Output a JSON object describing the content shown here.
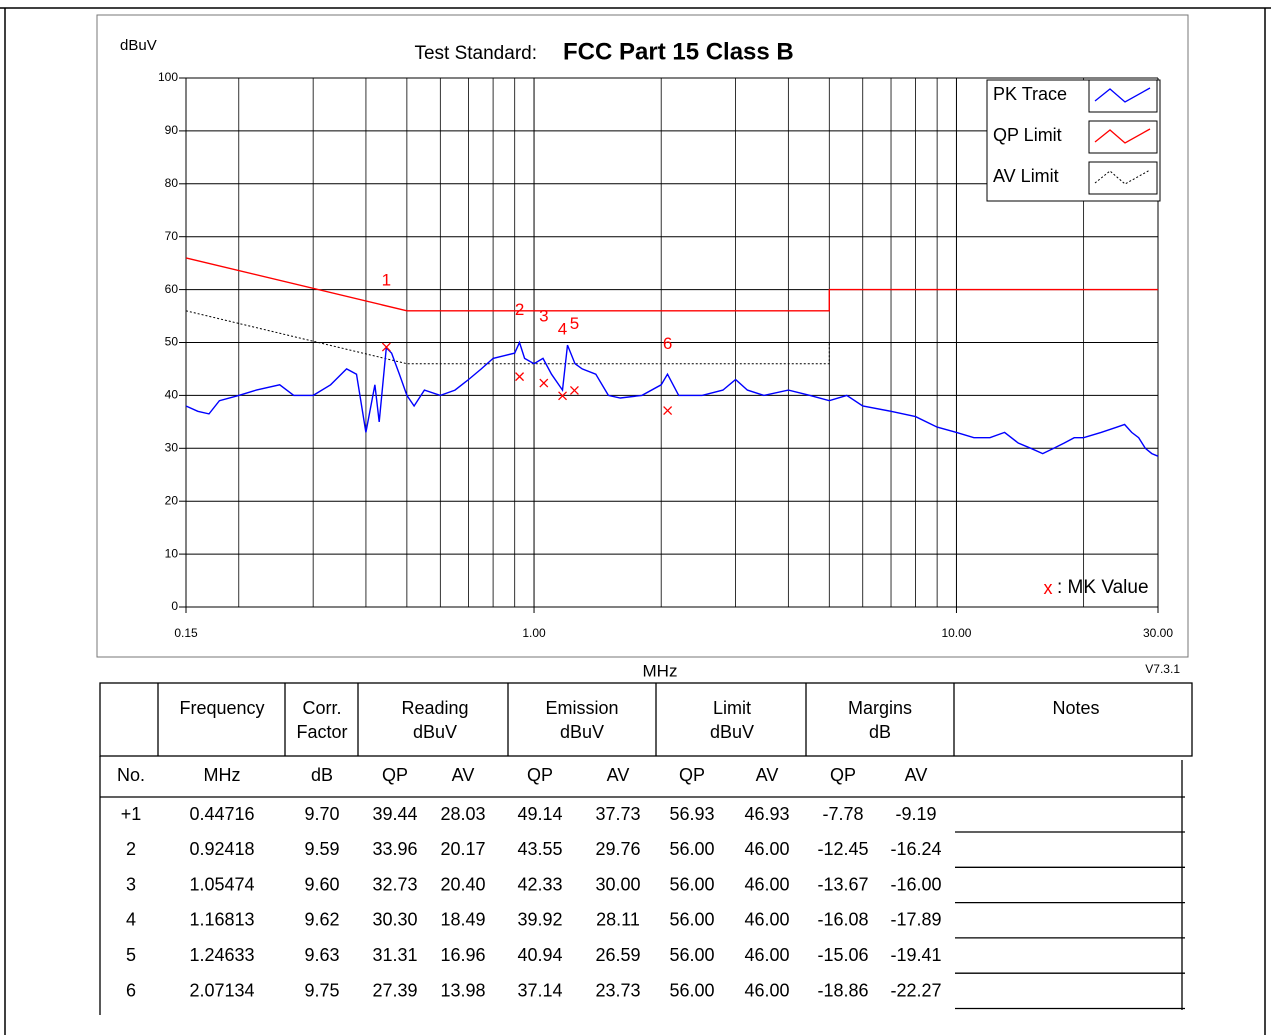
{
  "chart_data": {
    "type": "line",
    "ylabel": "dBuV",
    "title_prefix": "Test Standard:",
    "title": "FCC Part 15 Class B",
    "xlabel": "MHz",
    "version": "V7.3.1",
    "x_log": true,
    "grid": true,
    "legend": "upper right",
    "xlim": [
      0.15,
      30
    ],
    "ylim": [
      0,
      100
    ],
    "xticks": [
      0.15,
      {
        "value": 1,
        "label": "1.00"
      },
      {
        "value": 10,
        "label": "10.00"
      },
      {
        "value": 30,
        "label": "30.00"
      }
    ],
    "x_minor_grid": [
      0.2,
      0.3,
      0.4,
      0.5,
      0.6,
      0.7,
      0.8,
      0.9,
      2,
      3,
      4,
      5,
      6,
      7,
      8,
      9,
      20
    ],
    "yticks": [
      0,
      10,
      20,
      30,
      40,
      50,
      60,
      70,
      80,
      90,
      100
    ],
    "series": [
      {
        "name": "PK Trace",
        "color": "#0000ff",
        "x": [
          0.15,
          0.16,
          0.17,
          0.18,
          0.2,
          0.22,
          0.25,
          0.27,
          0.3,
          0.33,
          0.36,
          0.38,
          0.4,
          0.42,
          0.43,
          0.447,
          0.46,
          0.48,
          0.5,
          0.52,
          0.55,
          0.6,
          0.65,
          0.7,
          0.75,
          0.8,
          0.85,
          0.9,
          0.924,
          0.95,
          1.0,
          1.05,
          1.1,
          1.168,
          1.2,
          1.25,
          1.3,
          1.4,
          1.5,
          1.6,
          1.8,
          2.0,
          2.07,
          2.2,
          2.5,
          2.8,
          3.0,
          3.2,
          3.5,
          4.0,
          4.5,
          5.0,
          5.5,
          6.0,
          7,
          8,
          9,
          10,
          11,
          12,
          13,
          14,
          15,
          16,
          17,
          18,
          19,
          20,
          22,
          24,
          25,
          26,
          27,
          28,
          29,
          30
        ],
        "values": [
          38,
          37,
          36.5,
          39,
          40,
          41,
          42,
          40,
          40,
          42,
          45,
          44,
          33,
          42,
          35,
          49,
          48,
          44,
          40,
          38,
          41,
          40,
          41,
          43,
          45,
          47,
          47.5,
          48,
          50,
          47,
          46,
          47,
          44,
          41,
          49.5,
          46,
          45,
          44,
          40,
          39.5,
          40,
          42,
          44,
          40,
          40,
          41,
          43,
          41,
          40,
          41,
          40,
          39,
          40,
          38,
          37,
          36,
          34,
          33,
          32,
          32,
          33,
          31,
          30,
          29,
          30,
          31,
          32,
          32,
          33,
          34,
          34.5,
          33,
          32,
          30,
          29,
          28.5
        ]
      },
      {
        "name": "QP Limit",
        "color": "#ff0000",
        "x": [
          0.15,
          0.5,
          5,
          5,
          30
        ],
        "values": [
          66,
          56,
          56,
          60,
          60
        ]
      },
      {
        "name": "AV Limit",
        "color": "#000000",
        "dashed": true,
        "x": [
          0.15,
          0.5,
          5,
          5,
          30
        ],
        "values": [
          56,
          46,
          46,
          50,
          50
        ]
      }
    ],
    "markers": {
      "color": "#ff0000",
      "x": [
        0.44716,
        0.92418,
        1.05474,
        1.16813,
        1.24633,
        2.07134
      ],
      "values": [
        49.14,
        43.55,
        42.33,
        39.92,
        40.94,
        37.14
      ],
      "labels": [
        "1",
        "2",
        "3",
        "4",
        "5",
        "6"
      ]
    },
    "mk_legend": {
      "symbol": "x",
      "text": ": MK Value"
    }
  },
  "table": {
    "header": [
      [
        "Frequency"
      ],
      [
        "Corr.",
        "Factor"
      ],
      [
        "Reading",
        "dBuV"
      ],
      [
        "Emission",
        "dBuV"
      ],
      [
        "Limit",
        "dBuV"
      ],
      [
        "Margins",
        "dB"
      ],
      [
        "Notes"
      ]
    ],
    "subheader": [
      "No.",
      "MHz",
      "dB",
      "QP",
      "AV",
      "QP",
      "AV",
      "QP",
      "AV",
      "QP",
      "AV"
    ],
    "rows": [
      [
        "+1",
        "0.44716",
        "9.70",
        "39.44",
        "28.03",
        "49.14",
        "37.73",
        "56.93",
        "46.93",
        "-7.78",
        "-9.19"
      ],
      [
        "2",
        "0.92418",
        "9.59",
        "33.96",
        "20.17",
        "43.55",
        "29.76",
        "56.00",
        "46.00",
        "-12.45",
        "-16.24"
      ],
      [
        "3",
        "1.05474",
        "9.60",
        "32.73",
        "20.40",
        "42.33",
        "30.00",
        "56.00",
        "46.00",
        "-13.67",
        "-16.00"
      ],
      [
        "4",
        "1.16813",
        "9.62",
        "30.30",
        "18.49",
        "39.92",
        "28.11",
        "56.00",
        "46.00",
        "-16.08",
        "-17.89"
      ],
      [
        "5",
        "1.24633",
        "9.63",
        "31.31",
        "16.96",
        "40.94",
        "26.59",
        "56.00",
        "46.00",
        "-15.06",
        "-19.41"
      ],
      [
        "6",
        "2.07134",
        "9.75",
        "27.39",
        "13.98",
        "37.14",
        "23.73",
        "56.00",
        "46.00",
        "-18.86",
        "-22.27"
      ]
    ]
  }
}
